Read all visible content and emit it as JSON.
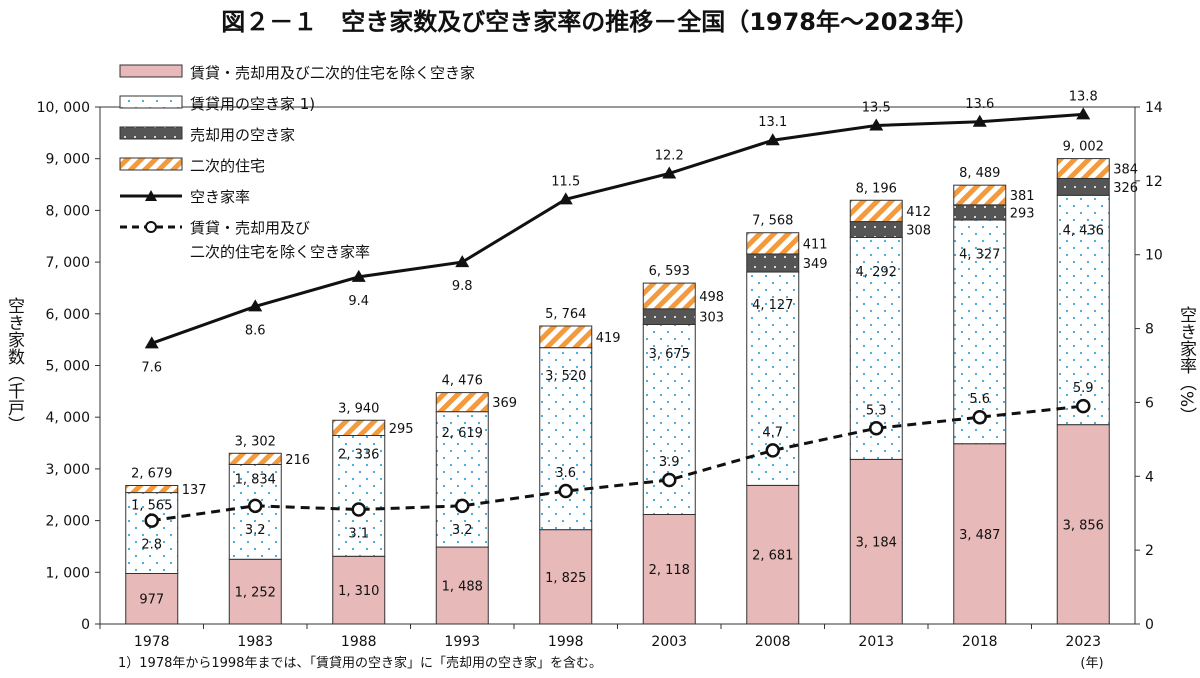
{
  "chart_data": {
    "type": "bar",
    "stacked": true,
    "title": "図２－１　空き家数及び空き家率の推移－全国（1978年～2023年）",
    "ylabel": "空き家数（千戸）",
    "y2label": "空き家率（%）",
    "xunit": "(年)",
    "ylim": [
      0,
      10000
    ],
    "y2lim": [
      0,
      14
    ],
    "yticks": [
      0,
      1000,
      2000,
      3000,
      4000,
      5000,
      6000,
      7000,
      8000,
      9000,
      10000
    ],
    "y2ticks": [
      0,
      2,
      4,
      6,
      8,
      10,
      12,
      14
    ],
    "grid": false,
    "legend_position": "top-left",
    "categories": [
      "1978",
      "1983",
      "1988",
      "1993",
      "1998",
      "2003",
      "2008",
      "2013",
      "2018",
      "2023"
    ],
    "series": [
      {
        "name": "賃貸・売却用及び二次的住宅を除く空き家",
        "kind": "bar",
        "color": "#e8b9b9",
        "values": [
          977,
          1252,
          1310,
          1488,
          1825,
          2118,
          2681,
          3184,
          3487,
          3856
        ]
      },
      {
        "name": "賃貸用の空き家 1)",
        "kind": "bar",
        "color": "#3aa6d8",
        "values": [
          1565,
          1834,
          2336,
          2619,
          3520,
          3675,
          4127,
          4292,
          4327,
          4436
        ]
      },
      {
        "name": "売却用の空き家",
        "kind": "bar",
        "color": "#555555",
        "values": [
          null,
          null,
          null,
          null,
          null,
          303,
          349,
          308,
          293,
          326
        ]
      },
      {
        "name": "二次的住宅",
        "kind": "bar",
        "color": "#f39a3c",
        "values": [
          137,
          216,
          295,
          369,
          419,
          498,
          411,
          412,
          381,
          384
        ]
      },
      {
        "name": "空き家率",
        "kind": "line",
        "axis": "right",
        "marker": "triangle",
        "values": [
          7.6,
          8.6,
          9.4,
          9.8,
          11.5,
          12.2,
          13.1,
          13.5,
          13.6,
          13.8
        ]
      },
      {
        "name": "賃貸・売却用及び\n二次的住宅を除く空き家率",
        "kind": "line",
        "axis": "right",
        "marker": "circle",
        "dashed": true,
        "values": [
          2.8,
          3.2,
          3.1,
          3.2,
          3.6,
          3.9,
          4.7,
          5.3,
          5.6,
          5.9
        ]
      }
    ],
    "totals": [
      2679,
      3302,
      3940,
      4476,
      5764,
      6593,
      7568,
      8196,
      8489,
      9002
    ],
    "footnote": "1）1978年から1998年までは、「賃貸用の空き家」に「売却用の空き家」を含む。"
  }
}
